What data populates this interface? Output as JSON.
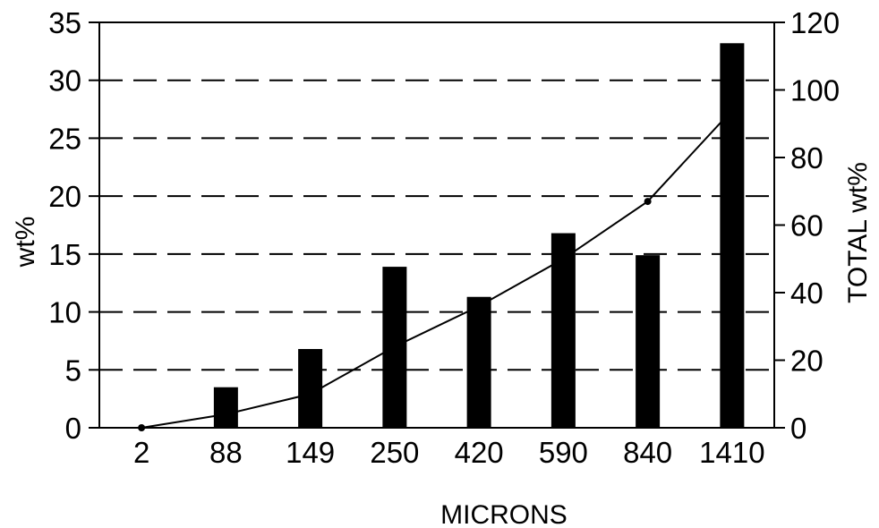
{
  "chart_data": {
    "type": "bar",
    "categories": [
      "2",
      "88",
      "149",
      "250",
      "420",
      "590",
      "840",
      "1410"
    ],
    "series": [
      {
        "type": "bar",
        "axis": "left",
        "values": [
          0,
          3.5,
          6.8,
          13.9,
          11.3,
          16.8,
          14.9,
          33.2
        ]
      },
      {
        "type": "line",
        "axis": "right",
        "values": [
          0,
          4,
          10,
          24,
          36,
          50,
          67,
          94
        ]
      }
    ],
    "xlabel": "MICRONS",
    "ylabel": "wt%",
    "y2label": "TOTAL wt%",
    "ylim": [
      0,
      35
    ],
    "y2lim": [
      0,
      120
    ],
    "yticks": [
      "0",
      "5",
      "10",
      "15",
      "20",
      "25",
      "30",
      "35"
    ],
    "y2ticks": [
      "0",
      "20",
      "40",
      "60",
      "80",
      "100",
      "120"
    ],
    "grid": "horizontal-dashed",
    "colors": {
      "bars": "#000000",
      "line": "#000000",
      "grid": "#000000"
    }
  }
}
